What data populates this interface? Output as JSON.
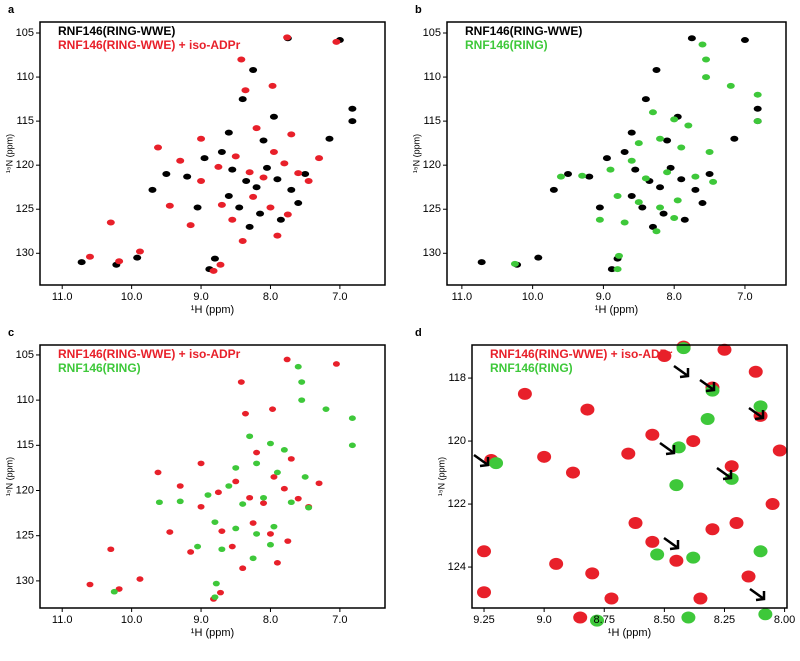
{
  "chart_data": [
    {
      "type": "scatter",
      "panel_label": "a",
      "xlabel": "¹H (ppm)",
      "ylabel": "¹⁵N (ppm)",
      "xlim": [
        11.32,
        6.35
      ],
      "ylim": [
        103.75,
        133.6
      ],
      "xticks": [
        {
          "value": 11,
          "label": "11.0"
        },
        {
          "value": 10,
          "label": "10.0"
        },
        {
          "value": 9,
          "label": "9.0"
        },
        {
          "value": 8,
          "label": "8.0"
        },
        {
          "value": 7,
          "label": "7.0"
        }
      ],
      "yticks": [
        105,
        110,
        115,
        120,
        125,
        130
      ],
      "series": [
        {
          "name": "RNF146(RING-WWE)",
          "color": "#000000",
          "x": [
            10.72,
            10.22,
            9.92,
            8.88,
            8.8,
            7.75,
            7.0,
            8.25,
            8.4,
            9.5,
            9.2,
            8.95,
            8.7,
            8.55,
            8.35,
            8.2,
            8.05,
            7.9,
            7.7,
            7.5,
            8.6,
            8.45,
            8.15,
            7.85,
            7.6,
            9.7,
            9.05,
            8.3,
            7.15,
            6.82,
            6.82,
            8.1,
            7.95,
            8.6
          ],
          "values": [
            131.0,
            131.3,
            130.5,
            131.8,
            130.6,
            105.6,
            105.8,
            109.2,
            112.5,
            121.0,
            121.3,
            119.2,
            118.5,
            120.5,
            121.8,
            122.5,
            120.3,
            121.6,
            122.8,
            121.0,
            123.5,
            124.8,
            125.5,
            126.2,
            124.3,
            122.8,
            124.8,
            127.0,
            117.0,
            113.6,
            115.0,
            117.2,
            114.5,
            116.3
          ]
        },
        {
          "name": "RNF146(RING-WWE) + iso-ADPr",
          "color": "#e8202a",
          "x": [
            10.6,
            10.18,
            9.88,
            8.82,
            8.72,
            7.76,
            7.05,
            8.42,
            8.36,
            7.97,
            9.62,
            9.3,
            9.0,
            8.75,
            8.5,
            8.3,
            8.1,
            7.95,
            7.8,
            7.6,
            7.45,
            7.3,
            8.7,
            8.55,
            8.25,
            8.0,
            7.75,
            9.45,
            9.15,
            8.4,
            7.9,
            8.2,
            7.7,
            9.0,
            10.3
          ],
          "values": [
            130.4,
            130.9,
            129.8,
            132.0,
            131.3,
            105.5,
            106.0,
            108.0,
            111.5,
            111.0,
            118.0,
            119.5,
            121.8,
            120.2,
            119.0,
            120.8,
            121.4,
            118.5,
            119.8,
            120.9,
            121.8,
            119.2,
            124.5,
            126.2,
            123.6,
            124.8,
            125.6,
            124.6,
            126.8,
            128.6,
            128.0,
            115.8,
            116.5,
            117.0,
            126.5
          ]
        }
      ]
    },
    {
      "type": "scatter",
      "panel_label": "b",
      "xlabel": "¹H (ppm)",
      "ylabel": "¹⁵N (ppm)",
      "xlim": [
        11.21,
        6.42
      ],
      "ylim": [
        103.75,
        133.6
      ],
      "xticks": [
        {
          "value": 11,
          "label": "11.0"
        },
        {
          "value": 10,
          "label": "10.0"
        },
        {
          "value": 9,
          "label": "9.0"
        },
        {
          "value": 8,
          "label": "8.0"
        },
        {
          "value": 7,
          "label": "7.0"
        }
      ],
      "yticks": [
        105,
        110,
        115,
        120,
        125,
        130
      ],
      "series": [
        {
          "name": "RNF146(RING-WWE)",
          "color": "#000000",
          "x": [
            10.72,
            10.22,
            9.92,
            8.88,
            8.8,
            7.75,
            7.0,
            8.25,
            8.4,
            9.5,
            9.2,
            8.95,
            8.7,
            8.55,
            8.35,
            8.2,
            8.05,
            7.9,
            7.7,
            7.5,
            8.6,
            8.45,
            8.15,
            7.85,
            7.6,
            9.7,
            9.05,
            8.3,
            7.15,
            6.82,
            6.82,
            8.1,
            7.95,
            8.6
          ],
          "values": [
            131.0,
            131.3,
            130.5,
            131.8,
            130.6,
            105.6,
            105.8,
            109.2,
            112.5,
            121.0,
            121.3,
            119.2,
            118.5,
            120.5,
            121.8,
            122.5,
            120.3,
            121.6,
            122.8,
            121.0,
            123.5,
            124.8,
            125.5,
            126.2,
            124.3,
            122.8,
            124.8,
            127.0,
            117.0,
            113.6,
            115.0,
            117.2,
            114.5,
            116.3
          ]
        },
        {
          "name": "RNF146(RING)",
          "color": "#3ec83a",
          "x": [
            10.25,
            8.8,
            8.78,
            7.6,
            7.55,
            7.55,
            7.2,
            6.82,
            6.82,
            8.3,
            8.0,
            7.8,
            8.5,
            8.2,
            7.9,
            7.5,
            8.9,
            9.3,
            8.6,
            8.4,
            8.1,
            7.7,
            7.45,
            9.6,
            8.8,
            8.5,
            8.2,
            7.95,
            8.7,
            8.0,
            8.25,
            9.05
          ],
          "values": [
            131.2,
            131.8,
            130.3,
            106.3,
            108.0,
            110.0,
            111.0,
            112.0,
            115.0,
            114.0,
            114.8,
            115.5,
            117.5,
            117.0,
            118.0,
            118.5,
            120.5,
            121.2,
            119.5,
            121.5,
            120.8,
            121.3,
            121.9,
            121.3,
            123.5,
            124.2,
            124.8,
            124.0,
            126.5,
            126.0,
            127.5,
            126.2
          ]
        }
      ]
    },
    {
      "type": "scatter",
      "panel_label": "c",
      "xlabel": "¹H (ppm)",
      "ylabel": "¹⁵N (ppm)",
      "xlim": [
        11.32,
        6.35
      ],
      "ylim": [
        103.9,
        133.0
      ],
      "xticks": [
        {
          "value": 11,
          "label": "11.0"
        },
        {
          "value": 10,
          "label": "10.0"
        },
        {
          "value": 9,
          "label": "9.0"
        },
        {
          "value": 8,
          "label": "8.0"
        },
        {
          "value": 7,
          "label": "7.0"
        }
      ],
      "yticks": [
        105,
        110,
        115,
        120,
        125,
        130
      ],
      "series": [
        {
          "name": "RNF146(RING-WWE) + iso-ADPr",
          "color": "#e8202a",
          "x": [
            10.6,
            10.18,
            9.88,
            8.82,
            8.72,
            7.76,
            7.05,
            8.42,
            8.36,
            7.97,
            9.62,
            9.3,
            9.0,
            8.75,
            8.5,
            8.3,
            8.1,
            7.95,
            7.8,
            7.6,
            7.45,
            7.3,
            8.7,
            8.55,
            8.25,
            8.0,
            7.75,
            9.45,
            9.15,
            8.4,
            7.9,
            8.2,
            7.7,
            9.0,
            10.3
          ],
          "values": [
            130.4,
            130.9,
            129.8,
            132.0,
            131.3,
            105.5,
            106.0,
            108.0,
            111.5,
            111.0,
            118.0,
            119.5,
            121.8,
            120.2,
            119.0,
            120.8,
            121.4,
            118.5,
            119.8,
            120.9,
            121.8,
            119.2,
            124.5,
            126.2,
            123.6,
            124.8,
            125.6,
            124.6,
            126.8,
            128.6,
            128.0,
            115.8,
            116.5,
            117.0,
            126.5
          ]
        },
        {
          "name": "RNF146(RING)",
          "color": "#3ec83a",
          "x": [
            10.25,
            8.8,
            8.78,
            7.6,
            7.55,
            7.55,
            7.2,
            6.82,
            6.82,
            8.3,
            8.0,
            7.8,
            8.5,
            8.2,
            7.9,
            7.5,
            8.9,
            9.3,
            8.6,
            8.4,
            8.1,
            7.7,
            7.45,
            9.6,
            8.8,
            8.5,
            8.2,
            7.95,
            8.7,
            8.0,
            8.25,
            9.05
          ],
          "values": [
            131.2,
            131.8,
            130.3,
            106.3,
            108.0,
            110.0,
            111.0,
            112.0,
            115.0,
            114.0,
            114.8,
            115.5,
            117.5,
            117.0,
            118.0,
            118.5,
            120.5,
            121.2,
            119.5,
            121.5,
            120.8,
            121.3,
            121.9,
            121.3,
            123.5,
            124.2,
            124.8,
            124.0,
            126.5,
            126.0,
            127.5,
            126.2
          ]
        }
      ]
    },
    {
      "type": "scatter",
      "panel_label": "d",
      "xlabel": "¹H (ppm)",
      "ylabel": "¹⁵N (ppm)",
      "xlim": [
        9.3,
        7.99
      ],
      "ylim": [
        116.95,
        125.3
      ],
      "xticks": [
        9.25,
        {
          "value": 9,
          "label": "9.0"
        },
        8.75,
        {
          "value": 8.5,
          "label": "8.50"
        },
        8.25,
        {
          "value": 8,
          "label": "8.00"
        }
      ],
      "yticks": [
        118,
        120,
        122,
        124
      ],
      "series": [
        {
          "name": "RNF146(RING-WWE) + iso-ADPr",
          "color": "#e8202a",
          "x": [
            9.22,
            9.25,
            9.25,
            9.08,
            9.0,
            8.95,
            8.88,
            8.82,
            8.8,
            8.72,
            8.65,
            8.55,
            8.55,
            8.5,
            8.45,
            8.42,
            8.38,
            8.3,
            8.25,
            8.22,
            8.2,
            8.15,
            8.12,
            8.05,
            8.02,
            8.1,
            8.35,
            8.62,
            8.85,
            8.3
          ],
          "values": [
            120.6,
            123.5,
            124.8,
            118.5,
            120.5,
            123.9,
            121.0,
            119.0,
            124.2,
            125.0,
            120.4,
            119.8,
            123.2,
            117.3,
            123.8,
            117.0,
            120.0,
            122.8,
            117.1,
            120.8,
            122.6,
            124.3,
            117.8,
            122.0,
            120.3,
            119.2,
            125.0,
            122.6,
            125.6,
            118.3
          ]
        },
        {
          "name": "RNF146(RING)",
          "color": "#3ec83a",
          "x": [
            9.2,
            8.42,
            8.3,
            8.1,
            8.32,
            8.44,
            8.22,
            8.38,
            8.08,
            8.53,
            8.78,
            8.4,
            8.1,
            8.45
          ],
          "values": [
            120.7,
            117.05,
            118.4,
            118.9,
            119.3,
            120.2,
            121.2,
            123.7,
            125.5,
            123.6,
            125.7,
            125.6,
            123.5,
            121.4
          ]
        }
      ]
    }
  ]
}
